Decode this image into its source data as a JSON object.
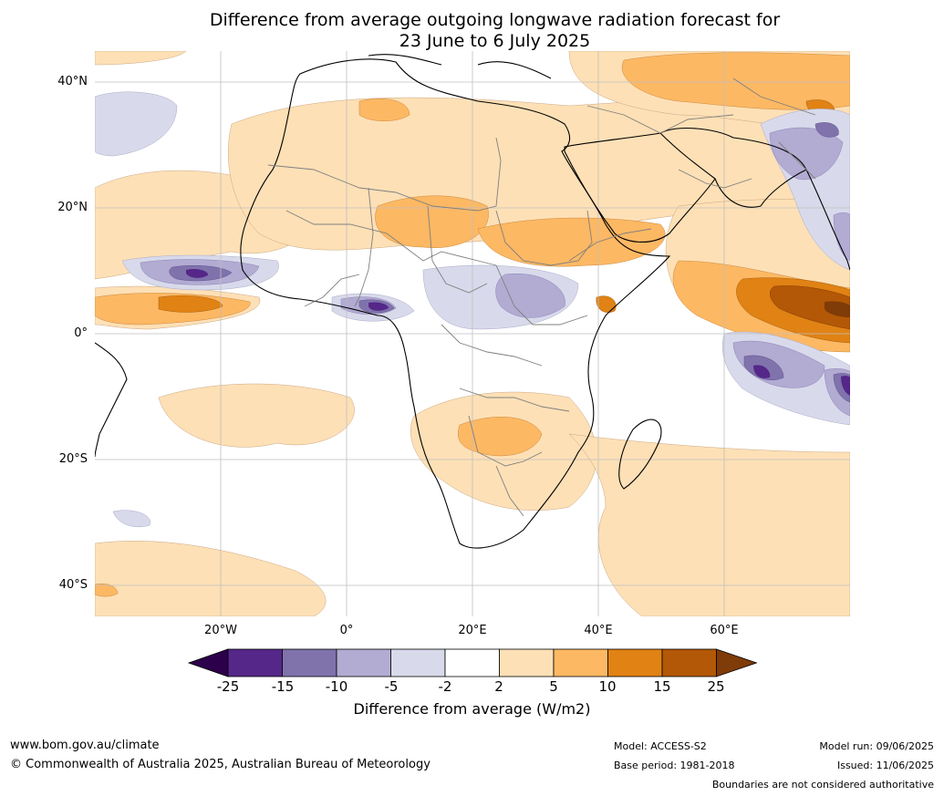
{
  "title": {
    "line1": "Difference from average outgoing longwave radiation forecast for",
    "line2": "23 June to 6 July 2025"
  },
  "axes": {
    "lat_labels": [
      "40°N",
      "20°N",
      "0°",
      "20°S",
      "40°S"
    ],
    "lon_labels": [
      "20°W",
      "0°",
      "20°E",
      "40°E",
      "60°E"
    ]
  },
  "colorbar": {
    "label": "Difference from average (W/m2)",
    "ticks": [
      "-25",
      "-15",
      "-10",
      "-5",
      "-2",
      "2",
      "5",
      "10",
      "15",
      "25"
    ],
    "colors": [
      "#2d004b",
      "#542788",
      "#8073ac",
      "#b2abd2",
      "#d8daeb",
      "#ffffff",
      "#fee0b6",
      "#fdb863",
      "#e08214",
      "#b35806",
      "#7f3b08"
    ]
  },
  "footer": {
    "website": "www.bom.gov.au/climate",
    "copyright": "© Commonwealth of Australia 2025, Australian Bureau of Meteorology",
    "model": "Model: ACCESS-S2",
    "base_period": "Base period: 1981-2018",
    "model_run": "Model run: 09/06/2025",
    "issued": "Issued: 11/06/2025",
    "disclaimer": "Boundaries are not considered authoritative"
  }
}
